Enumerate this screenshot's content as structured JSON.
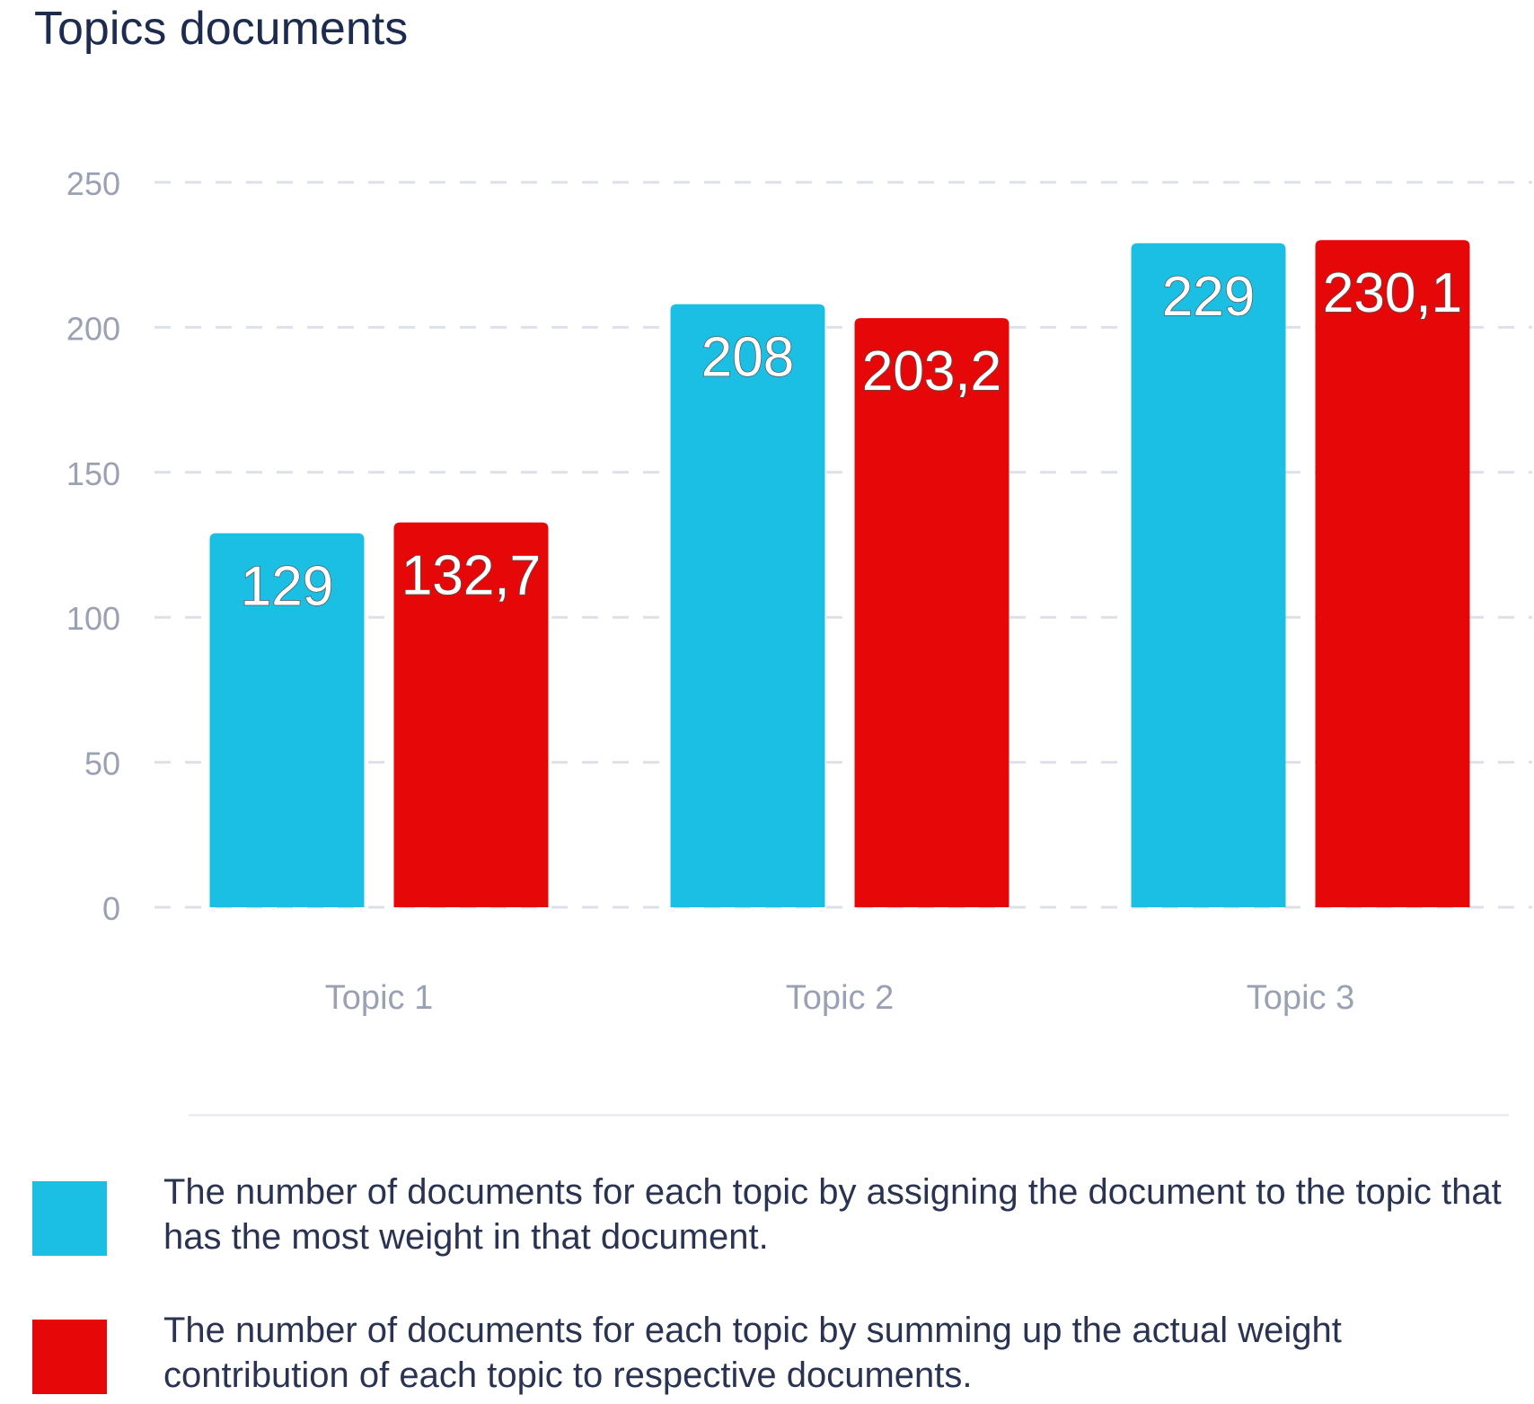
{
  "chart_data": {
    "type": "bar",
    "title": "Topics documents",
    "categories": [
      "Topic 1",
      "Topic 2",
      "Topic 3"
    ],
    "series": [
      {
        "values": [
          129,
          208,
          229
        ],
        "labels": [
          "129",
          "208",
          "229"
        ],
        "color": "#1bbfe4"
      },
      {
        "values": [
          132.7,
          203.2,
          230.1
        ],
        "labels": [
          "132,7",
          "203,2",
          "230,1"
        ],
        "color": "#e60808"
      }
    ],
    "yticks": [
      "0",
      "50",
      "100",
      "150",
      "200",
      "250"
    ],
    "ylim": [
      0,
      250
    ],
    "xlabel": "",
    "ylabel": "",
    "grid": true,
    "legend_position": "bottom"
  },
  "legend": {
    "items": [
      {
        "text": "The number of documents for each topic by assigning the document to the topic that has the most weight in that document.",
        "color": "#1bbfe4"
      },
      {
        "text": "The number of documents for each topic by summing up the actual weight contribution of each topic to respective documents.",
        "color": "#e60808"
      }
    ]
  }
}
